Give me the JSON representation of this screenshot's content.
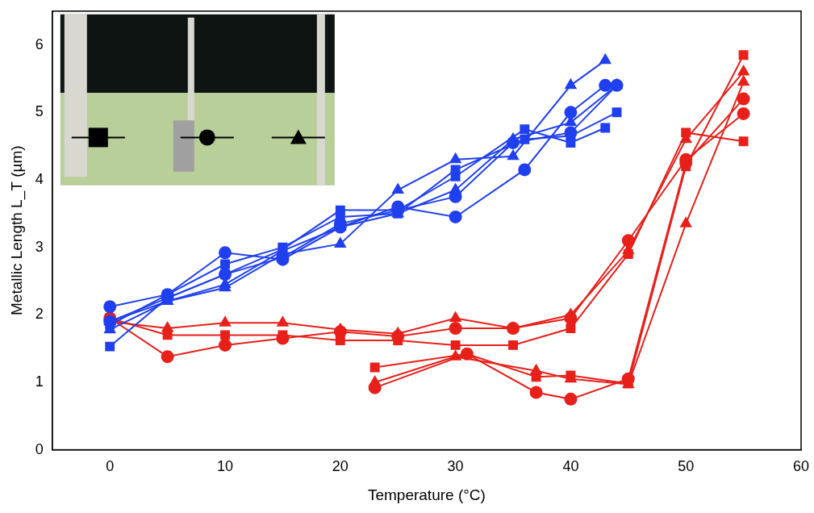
{
  "chart_data": {
    "type": "line",
    "xlabel": "Temperature (°C)",
    "ylabel": "Metallic Length L_T (µm)",
    "xlim": [
      -5,
      60
    ],
    "xticks": [
      0,
      10,
      20,
      30,
      40,
      50,
      60
    ],
    "ylim": [
      0,
      6.5
    ],
    "yticks": [
      0,
      1,
      2,
      3,
      4,
      5,
      6
    ],
    "grid": false,
    "series": [
      {
        "color": "#2040f0",
        "marker": "square",
        "x": [
          0,
          5,
          10,
          15,
          20,
          25,
          30,
          36,
          40,
          43
        ],
        "values": [
          1.53,
          2.25,
          2.6,
          2.97,
          3.55,
          3.55,
          4.05,
          4.75,
          4.55,
          4.77
        ]
      },
      {
        "color": "#2040f0",
        "marker": "square",
        "x": [
          0,
          5,
          10,
          15,
          20,
          25,
          30,
          36,
          40,
          44
        ],
        "values": [
          1.85,
          2.3,
          2.75,
          3.0,
          3.45,
          3.5,
          4.15,
          4.6,
          4.65,
          5.0
        ]
      },
      {
        "color": "#2040f0",
        "marker": "circle",
        "x": [
          0,
          5,
          10,
          15,
          20,
          25,
          30,
          36,
          40,
          43
        ],
        "values": [
          2.12,
          2.3,
          2.92,
          2.82,
          3.3,
          3.6,
          3.45,
          4.15,
          5.0,
          5.4
        ]
      },
      {
        "color": "#2040f0",
        "marker": "circle",
        "x": [
          0,
          5,
          10,
          15,
          20,
          25,
          30,
          35,
          40,
          44
        ],
        "values": [
          1.9,
          2.25,
          2.6,
          2.85,
          3.35,
          3.55,
          3.75,
          4.55,
          4.7,
          5.4
        ]
      },
      {
        "color": "#2040f0",
        "marker": "triangle",
        "x": [
          0,
          5,
          10,
          15,
          20,
          25,
          30,
          35,
          40,
          43
        ],
        "values": [
          1.78,
          2.2,
          2.4,
          2.9,
          3.05,
          3.85,
          4.3,
          4.35,
          5.4,
          5.77
        ]
      },
      {
        "color": "#2040f0",
        "marker": "triangle",
        "x": [
          0,
          5,
          10,
          15,
          20,
          25,
          30,
          35,
          40,
          44
        ],
        "values": [
          1.9,
          2.2,
          2.45,
          2.95,
          3.3,
          3.5,
          3.85,
          4.6,
          4.85,
          5.4
        ]
      },
      {
        "color": "#e8201a",
        "marker": "square",
        "x": [
          0,
          5,
          10,
          15,
          20,
          25,
          30,
          35,
          40,
          45,
          50,
          55
        ],
        "values": [
          1.95,
          1.7,
          1.7,
          1.7,
          1.62,
          1.62,
          1.55,
          1.55,
          1.8,
          2.9,
          4.7,
          4.57
        ]
      },
      {
        "color": "#e8201a",
        "marker": "circle",
        "x": [
          0,
          5,
          10,
          15,
          20,
          25,
          30,
          35,
          40,
          45,
          50,
          55
        ],
        "values": [
          1.95,
          1.38,
          1.55,
          1.65,
          1.75,
          1.68,
          1.8,
          1.8,
          1.95,
          3.1,
          4.3,
          4.98
        ]
      },
      {
        "color": "#e8201a",
        "marker": "triangle",
        "x": [
          0,
          5,
          10,
          15,
          20,
          25,
          30,
          35,
          40,
          45,
          50,
          55
        ],
        "values": [
          1.9,
          1.8,
          1.88,
          1.88,
          1.78,
          1.72,
          1.95,
          1.8,
          2.0,
          2.95,
          4.6,
          5.6
        ]
      },
      {
        "color": "#e8201a",
        "marker": "square",
        "x": [
          23,
          31,
          37,
          40,
          45,
          50,
          55
        ],
        "values": [
          1.22,
          1.42,
          1.08,
          1.1,
          0.98,
          4.2,
          5.85
        ]
      },
      {
        "color": "#e8201a",
        "marker": "circle",
        "x": [
          23,
          31,
          37,
          40,
          45,
          50,
          55
        ],
        "values": [
          0.92,
          1.42,
          0.85,
          0.75,
          1.05,
          4.25,
          5.2
        ]
      },
      {
        "color": "#e8201a",
        "marker": "triangle",
        "x": [
          23,
          30,
          37,
          40,
          45,
          50,
          55
        ],
        "values": [
          1.0,
          1.38,
          1.17,
          1.05,
          0.97,
          3.35,
          5.45
        ]
      }
    ]
  }
}
